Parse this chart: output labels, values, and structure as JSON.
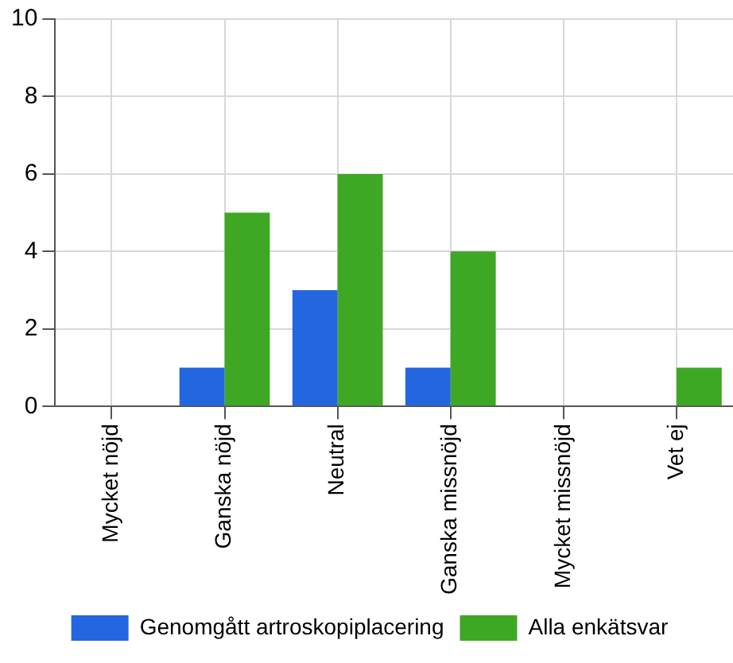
{
  "chart_data": {
    "type": "bar",
    "categories": [
      "Mycket nöjd",
      "Ganska nöjd",
      "Neutral",
      "Ganska missnöjd",
      "Mycket missnöjd",
      "Vet ej"
    ],
    "series": [
      {
        "name": "Genomgått artroskopiplacering",
        "color": "#2466e0",
        "values": [
          0,
          1,
          3,
          1,
          0,
          0
        ]
      },
      {
        "name": "Alla enkätsvar",
        "color": "#3ea824",
        "values": [
          0,
          5,
          6,
          4,
          0,
          1
        ]
      }
    ],
    "ylim": [
      0,
      10
    ],
    "yticks": [
      0,
      2,
      4,
      6,
      8,
      10
    ],
    "grid": true,
    "legend": "bottom"
  }
}
